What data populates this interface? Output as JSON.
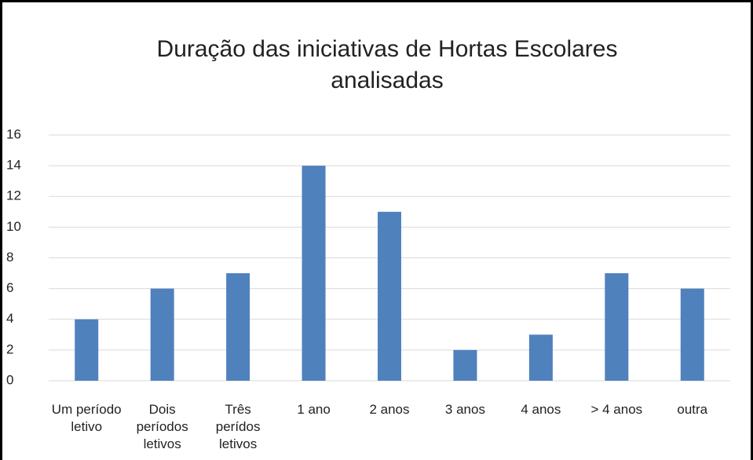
{
  "chart_data": {
    "type": "bar",
    "title": "Duração das iniciativas de Hortas Escolares analisadas",
    "categories": [
      "Um período letivo",
      "Dois períodos letivos",
      "Três perídos letivos",
      "1 ano",
      "2 anos",
      "3 anos",
      "4 anos",
      "> 4 anos",
      "outra"
    ],
    "values": [
      4,
      6,
      7,
      14,
      11,
      2,
      3,
      7,
      6
    ],
    "color": "#4f81bd",
    "ylim": [
      0,
      16
    ],
    "yticks": [
      0,
      2,
      4,
      6,
      8,
      10,
      12,
      14,
      16
    ],
    "grid": true
  }
}
